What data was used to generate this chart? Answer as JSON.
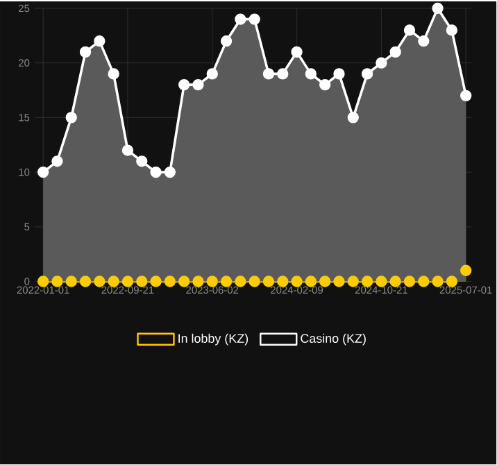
{
  "chart_data": {
    "type": "area",
    "categories": [
      "2022-01-01",
      null,
      null,
      null,
      null,
      null,
      "2022-09-21",
      null,
      null,
      null,
      null,
      null,
      "2023-06-02",
      null,
      null,
      null,
      null,
      null,
      "2024-02-09",
      null,
      null,
      null,
      null,
      null,
      "2024-10-21",
      null,
      null,
      null,
      null,
      null,
      "2025-07-01"
    ],
    "series": [
      {
        "name": "In lobby (KZ)",
        "color": "#ffcc00",
        "values": [
          0,
          0,
          0,
          0,
          0,
          0,
          0,
          0,
          0,
          0,
          0,
          0,
          0,
          0,
          0,
          0,
          0,
          0,
          0,
          0,
          0,
          0,
          0,
          0,
          0,
          0,
          0,
          0,
          0,
          0,
          1
        ]
      },
      {
        "name": "Casino (KZ)",
        "color": "#ffffff",
        "values": [
          10,
          11,
          15,
          21,
          22,
          19,
          12,
          11,
          10,
          10,
          18,
          18,
          19,
          22,
          24,
          24,
          19,
          19,
          21,
          19,
          18,
          19,
          15,
          19,
          20,
          21,
          23,
          22,
          25,
          23,
          17
        ]
      }
    ],
    "ylim": [
      0,
      25
    ],
    "yticks": [
      0,
      5,
      10,
      15,
      20,
      25
    ],
    "grid": true,
    "legend": "bottom",
    "marker": "circle"
  }
}
